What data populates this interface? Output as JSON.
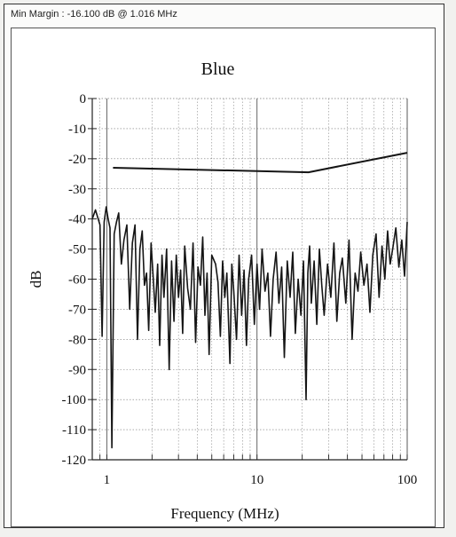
{
  "header": {
    "min_margin_text": "Min Margin : -16.100 dB @ 1.016 MHz"
  },
  "chart_data": {
    "type": "line",
    "title": "Blue",
    "xlabel": "Frequency (MHz)",
    "ylabel": "dB",
    "x_scale": "log",
    "xlim": [
      0.8,
      100
    ],
    "ylim": [
      -120,
      0
    ],
    "x_ticks": [
      1,
      10,
      100
    ],
    "x_tick_labels": [
      "1",
      "10",
      "100"
    ],
    "y_ticks": [
      0,
      -10,
      -20,
      -30,
      -40,
      -50,
      -60,
      -70,
      -80,
      -90,
      -100,
      -110,
      -120
    ],
    "y_tick_labels": [
      "0",
      "-10",
      "-20",
      "-30",
      "-40",
      "-50",
      "-60",
      "-70",
      "-80",
      "-90",
      "-100",
      "-110",
      "-120"
    ],
    "grid": true,
    "series": [
      {
        "role": "limit",
        "x": [
          1.1,
          22,
          100
        ],
        "y": [
          -23,
          -24.5,
          -18
        ]
      },
      {
        "role": "measured",
        "x": [
          0.8,
          0.84,
          0.9,
          0.93,
          0.96,
          0.99,
          1.02,
          1.05,
          1.08,
          1.12,
          1.16,
          1.2,
          1.25,
          1.3,
          1.36,
          1.42,
          1.48,
          1.54,
          1.6,
          1.66,
          1.72,
          1.78,
          1.84,
          1.9,
          1.97,
          2.04,
          2.1,
          2.18,
          2.25,
          2.33,
          2.4,
          2.5,
          2.6,
          2.7,
          2.8,
          2.9,
          3.0,
          3.1,
          3.2,
          3.3,
          3.45,
          3.6,
          3.75,
          3.9,
          4.05,
          4.2,
          4.35,
          4.5,
          4.65,
          4.8,
          5.0,
          5.3,
          5.5,
          5.7,
          5.9,
          6.1,
          6.3,
          6.6,
          6.8,
          7.0,
          7.3,
          7.6,
          7.9,
          8.2,
          8.5,
          8.8,
          9.2,
          9.6,
          10,
          10.4,
          10.8,
          11.3,
          11.8,
          12.3,
          12.8,
          13.4,
          14,
          14.6,
          15.2,
          15.9,
          16.6,
          17.3,
          18,
          18.8,
          19.6,
          20.4,
          21.2,
          21.8,
          22.4,
          23,
          24,
          25,
          26,
          27,
          28,
          29.5,
          31,
          32.5,
          34,
          35.5,
          37,
          39,
          41,
          43,
          45,
          47,
          49,
          51.5,
          54,
          56.5,
          59,
          62,
          65,
          68,
          71,
          74,
          77,
          80,
          84,
          88,
          92,
          96,
          100
        ],
        "y": [
          -40,
          -37,
          -42,
          -79,
          -41,
          -36,
          -40,
          -43,
          -116,
          -45,
          -41,
          -38,
          -55,
          -47,
          -42,
          -70,
          -48,
          -42,
          -80,
          -50,
          -44,
          -62,
          -58,
          -77,
          -48,
          -60,
          -71,
          -55,
          -82,
          -52,
          -66,
          -50,
          -90,
          -54,
          -74,
          -52,
          -66,
          -57,
          -78,
          -49,
          -63,
          -70,
          -48,
          -81,
          -56,
          -62,
          -46,
          -72,
          -58,
          -85,
          -52,
          -55,
          -61,
          -79,
          -54,
          -66,
          -58,
          -88,
          -55,
          -64,
          -80,
          -52,
          -72,
          -57,
          -82,
          -60,
          -52,
          -75,
          -55,
          -70,
          -50,
          -64,
          -58,
          -79,
          -60,
          -51,
          -68,
          -56,
          -86,
          -54,
          -66,
          -51,
          -78,
          -60,
          -72,
          -54,
          -100,
          -58,
          -49,
          -68,
          -54,
          -75,
          -50,
          -62,
          -72,
          -55,
          -66,
          -48,
          -74,
          -58,
          -53,
          -68,
          -47,
          -80,
          -58,
          -64,
          -51,
          -62,
          -55,
          -71,
          -52,
          -45,
          -66,
          -49,
          -60,
          -44,
          -55,
          -50,
          -43,
          -56,
          -47,
          -59,
          -41
        ]
      }
    ]
  }
}
